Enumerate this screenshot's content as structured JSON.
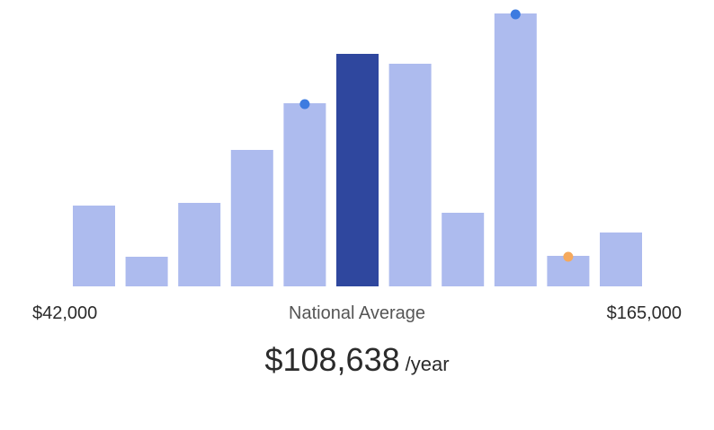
{
  "chart_data": {
    "type": "bar",
    "values": [
      90,
      33,
      93,
      152,
      204,
      259,
      248,
      82,
      304,
      34,
      60
    ],
    "ylim": [
      0,
      304
    ],
    "highlight_index": 5,
    "markers": [
      {
        "index": 4,
        "color": "#3d7be0"
      },
      {
        "index": 8,
        "color": "#3d7be0"
      },
      {
        "index": 9,
        "color": "#f5a95c"
      }
    ],
    "colors": {
      "bar": "#adbbee",
      "highlight": "#2f479e"
    }
  },
  "range": {
    "min_label": "$42,000",
    "max_label": "$165,000"
  },
  "center_label": "National Average",
  "salary": {
    "value": "$108,638",
    "unit": "/year"
  }
}
